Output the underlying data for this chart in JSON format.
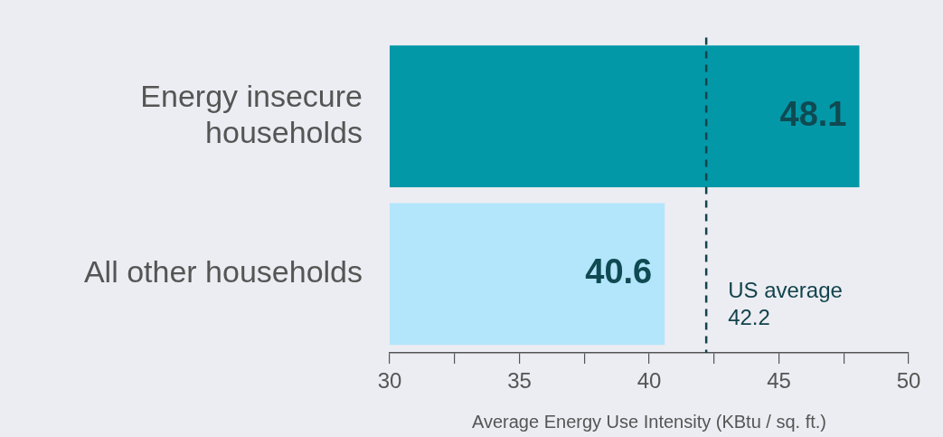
{
  "chart_data": {
    "type": "bar",
    "orientation": "horizontal",
    "xlabel": "Average Energy Use Intensity (KBtu / sq. ft.)",
    "categories": [
      "Energy insecure households",
      "All other households"
    ],
    "values": [
      48.1,
      40.6
    ],
    "colors": [
      "#0398a8",
      "#b3e5fb"
    ],
    "xlim": [
      30,
      50
    ],
    "xticks": [
      30,
      {
        "value": 32.5,
        "label": null
      },
      35,
      {
        "value": 37.5,
        "label": null
      },
      40,
      {
        "value": 42.5,
        "label": null
      },
      45,
      {
        "value": 47.5,
        "label": null
      },
      50
    ],
    "data_labels": true,
    "grid": false,
    "legend": false,
    "ref_lines": [
      {
        "axis": "x",
        "value": 42.2,
        "label": "US average 42.2",
        "color": "#12434c",
        "line_style": "dashed"
      }
    ]
  }
}
